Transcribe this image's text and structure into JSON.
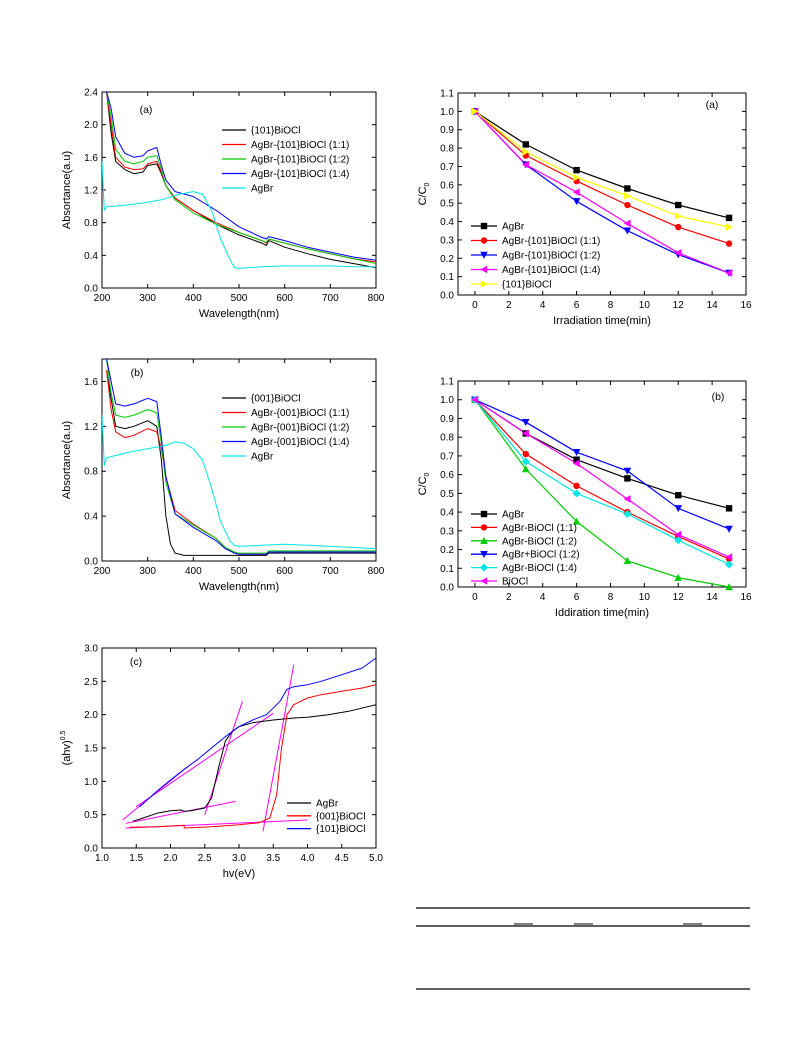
{
  "chart_data": [
    {
      "id": "abs_a",
      "type": "line",
      "panel_label": "(a)",
      "xlabel": "Wavelength(nm)",
      "ylabel": "Absortance(a.u)",
      "xlim": [
        200,
        800
      ],
      "ylim": [
        0,
        2.4
      ],
      "xticks": [
        200,
        300,
        400,
        500,
        600,
        700,
        800
      ],
      "yticks": [
        0.0,
        0.4,
        0.8,
        1.2,
        1.6,
        2.0,
        2.4
      ],
      "legend_position": "top-right",
      "series": [
        {
          "name": "{101}BiOCl",
          "color": "#000000",
          "x": [
            210,
            220,
            230,
            250,
            270,
            290,
            300,
            320,
            330,
            340,
            360,
            400,
            450,
            500,
            550,
            560,
            565,
            600,
            650,
            700,
            750,
            800
          ],
          "y": [
            2.4,
            1.9,
            1.55,
            1.45,
            1.4,
            1.42,
            1.5,
            1.52,
            1.4,
            1.25,
            1.1,
            0.95,
            0.78,
            0.65,
            0.55,
            0.52,
            0.58,
            0.5,
            0.42,
            0.35,
            0.3,
            0.25
          ]
        },
        {
          "name": "AgBr-{101}BiOCl (1:1)",
          "color": "#ff0000",
          "x": [
            210,
            220,
            230,
            250,
            270,
            290,
            300,
            320,
            330,
            340,
            360,
            400,
            450,
            500,
            550,
            560,
            565,
            600,
            650,
            700,
            750,
            800
          ],
          "y": [
            2.4,
            2.0,
            1.6,
            1.48,
            1.45,
            1.46,
            1.52,
            1.55,
            1.42,
            1.25,
            1.1,
            0.95,
            0.8,
            0.68,
            0.58,
            0.55,
            0.6,
            0.55,
            0.48,
            0.42,
            0.36,
            0.32
          ]
        },
        {
          "name": "AgBr-{101}BiOCl (1:2)",
          "color": "#00cc00",
          "x": [
            210,
            220,
            230,
            250,
            270,
            290,
            300,
            320,
            330,
            340,
            360,
            400,
            450,
            500,
            550,
            560,
            565,
            600,
            650,
            700,
            750,
            800
          ],
          "y": [
            2.4,
            2.1,
            1.7,
            1.55,
            1.52,
            1.55,
            1.6,
            1.62,
            1.45,
            1.25,
            1.08,
            0.92,
            0.78,
            0.68,
            0.58,
            0.56,
            0.6,
            0.55,
            0.48,
            0.42,
            0.36,
            0.3
          ]
        },
        {
          "name": "AgBr-{101}BiOCl (1:4)",
          "color": "#0000ff",
          "x": [
            210,
            220,
            230,
            250,
            270,
            290,
            300,
            320,
            330,
            340,
            360,
            400,
            450,
            500,
            550,
            560,
            565,
            600,
            650,
            700,
            750,
            800
          ],
          "y": [
            2.4,
            2.2,
            1.85,
            1.65,
            1.6,
            1.62,
            1.68,
            1.72,
            1.5,
            1.32,
            1.18,
            1.12,
            0.95,
            0.75,
            0.62,
            0.6,
            0.63,
            0.58,
            0.5,
            0.44,
            0.38,
            0.34
          ]
        },
        {
          "name": "AgBr",
          "color": "#00e5e5",
          "x": [
            200,
            205,
            210,
            230,
            260,
            300,
            330,
            370,
            400,
            420,
            440,
            460,
            480,
            490,
            500,
            550,
            600,
            650,
            700,
            750,
            800
          ],
          "y": [
            1.55,
            0.95,
            1.0,
            1.0,
            1.02,
            1.05,
            1.08,
            1.15,
            1.18,
            1.15,
            0.95,
            0.6,
            0.35,
            0.25,
            0.24,
            0.26,
            0.27,
            0.27,
            0.27,
            0.26,
            0.26
          ]
        }
      ]
    },
    {
      "id": "abs_b",
      "type": "line",
      "panel_label": "(b)",
      "xlabel": "Wavelength(nm)",
      "ylabel": "Absortance(a.u)",
      "xlim": [
        200,
        800
      ],
      "ylim": [
        0,
        1.8
      ],
      "xticks": [
        200,
        300,
        400,
        500,
        600,
        700,
        800
      ],
      "yticks": [
        0.0,
        0.4,
        0.8,
        1.2,
        1.6
      ],
      "legend_position": "top-right",
      "series": [
        {
          "name": "{001}BiOCl",
          "color": "#000000",
          "x": [
            210,
            220,
            230,
            250,
            270,
            300,
            320,
            330,
            340,
            350,
            360,
            380,
            400,
            450,
            500,
            550,
            560,
            565,
            600,
            700,
            800
          ],
          "y": [
            1.7,
            1.45,
            1.2,
            1.18,
            1.2,
            1.25,
            1.2,
            0.9,
            0.4,
            0.15,
            0.07,
            0.05,
            0.05,
            0.05,
            0.05,
            0.05,
            0.05,
            0.07,
            0.07,
            0.07,
            0.07
          ]
        },
        {
          "name": "AgBr-{001}BiOCl (1:1)",
          "color": "#ff0000",
          "x": [
            210,
            220,
            230,
            250,
            270,
            300,
            320,
            330,
            340,
            360,
            400,
            450,
            470,
            490,
            500,
            550,
            560,
            565,
            600,
            700,
            800
          ],
          "y": [
            1.7,
            1.35,
            1.15,
            1.1,
            1.12,
            1.18,
            1.15,
            1.0,
            0.75,
            0.45,
            0.33,
            0.2,
            0.12,
            0.07,
            0.06,
            0.06,
            0.06,
            0.08,
            0.08,
            0.08,
            0.08
          ]
        },
        {
          "name": "AgBr-{001}BiOCl (1:2)",
          "color": "#00cc00",
          "x": [
            210,
            220,
            230,
            250,
            270,
            300,
            320,
            330,
            340,
            360,
            400,
            450,
            470,
            490,
            500,
            550,
            560,
            565,
            600,
            700,
            800
          ],
          "y": [
            1.8,
            1.5,
            1.3,
            1.28,
            1.3,
            1.35,
            1.32,
            1.05,
            0.7,
            0.42,
            0.32,
            0.2,
            0.12,
            0.08,
            0.07,
            0.07,
            0.07,
            0.09,
            0.09,
            0.09,
            0.09
          ]
        },
        {
          "name": "AgBr-{001}BiOCl (1:4)",
          "color": "#0000ff",
          "x": [
            210,
            220,
            230,
            250,
            270,
            300,
            320,
            330,
            340,
            360,
            400,
            450,
            470,
            490,
            500,
            550,
            560,
            565,
            600,
            700,
            800
          ],
          "y": [
            1.8,
            1.6,
            1.4,
            1.38,
            1.4,
            1.45,
            1.42,
            1.1,
            0.75,
            0.42,
            0.3,
            0.18,
            0.11,
            0.07,
            0.06,
            0.06,
            0.06,
            0.08,
            0.08,
            0.08,
            0.08
          ]
        },
        {
          "name": "AgBr",
          "color": "#00e5e5",
          "x": [
            200,
            205,
            210,
            230,
            260,
            300,
            340,
            360,
            380,
            400,
            420,
            440,
            460,
            480,
            490,
            500,
            550,
            600,
            650,
            700,
            750,
            800
          ],
          "y": [
            1.3,
            0.85,
            0.92,
            0.94,
            0.97,
            1.0,
            1.03,
            1.06,
            1.05,
            1.0,
            0.9,
            0.65,
            0.35,
            0.18,
            0.14,
            0.13,
            0.14,
            0.15,
            0.14,
            0.13,
            0.12,
            0.11
          ]
        }
      ]
    },
    {
      "id": "tauc_c",
      "type": "line",
      "panel_label": "(c)",
      "xlabel": "hv(eV)",
      "ylabel": "(ahv)",
      "ylabel_sup": "0.5",
      "xlim": [
        1.0,
        5.0
      ],
      "ylim": [
        0.0,
        3.0
      ],
      "xticks": [
        1.0,
        1.5,
        2.0,
        2.5,
        3.0,
        3.5,
        4.0,
        4.5,
        5.0
      ],
      "yticks": [
        0.0,
        0.5,
        1.0,
        1.5,
        2.0,
        2.5,
        3.0
      ],
      "legend_position": "bottom-right",
      "series": [
        {
          "name": "AgBr",
          "color": "#000000",
          "x": [
            1.45,
            1.6,
            1.8,
            2.0,
            2.15,
            2.2,
            2.3,
            2.5,
            2.6,
            2.7,
            2.8,
            2.9,
            3.0,
            3.2,
            3.5,
            3.8,
            4.0,
            4.3,
            4.6,
            5.0
          ],
          "y": [
            0.4,
            0.45,
            0.52,
            0.56,
            0.57,
            0.55,
            0.56,
            0.6,
            0.75,
            1.2,
            1.6,
            1.75,
            1.82,
            1.88,
            1.92,
            1.95,
            1.96,
            2.0,
            2.05,
            2.15
          ]
        },
        {
          "name": "{001}BiOCl",
          "color": "#ff0000",
          "x": [
            1.4,
            1.8,
            2.2,
            2.2,
            2.6,
            3.0,
            3.3,
            3.45,
            3.55,
            3.62,
            3.7,
            3.8,
            3.9,
            4.0,
            4.2,
            4.5,
            4.8,
            5.0
          ],
          "y": [
            0.31,
            0.32,
            0.34,
            0.3,
            0.32,
            0.35,
            0.38,
            0.45,
            0.8,
            1.5,
            2.0,
            2.15,
            2.2,
            2.25,
            2.3,
            2.35,
            2.4,
            2.45
          ]
        },
        {
          "name": "{101}BiOCl",
          "color": "#0000ff",
          "x": [
            1.55,
            1.8,
            2.0,
            2.2,
            2.4,
            2.6,
            2.8,
            3.0,
            3.2,
            3.4,
            3.6,
            3.7,
            3.8,
            4.0,
            4.2,
            4.5,
            4.8,
            5.0
          ],
          "y": [
            0.62,
            0.85,
            1.02,
            1.18,
            1.33,
            1.5,
            1.67,
            1.82,
            1.92,
            2.0,
            2.2,
            2.38,
            2.42,
            2.45,
            2.5,
            2.6,
            2.7,
            2.85
          ]
        }
      ],
      "tangent_lines": [
        {
          "color": "#ff00ff",
          "x": [
            1.3,
            2.25
          ],
          "y": [
            0.42,
            1.22
          ]
        },
        {
          "color": "#ff00ff",
          "x": [
            1.35,
            2.95
          ],
          "y": [
            0.37,
            0.7
          ]
        },
        {
          "color": "#ff00ff",
          "x": [
            2.5,
            3.05
          ],
          "y": [
            0.5,
            2.2
          ]
        },
        {
          "color": "#ff00ff",
          "x": [
            1.35,
            4.0
          ],
          "y": [
            0.3,
            0.42
          ]
        },
        {
          "color": "#ff00ff",
          "x": [
            3.35,
            3.8
          ],
          "y": [
            0.25,
            2.75
          ]
        },
        {
          "color": "#ff00ff",
          "x": [
            1.5,
            3.5
          ],
          "y": [
            0.62,
            2.02
          ]
        }
      ]
    },
    {
      "id": "deg_a",
      "type": "line",
      "panel_label": "(a)",
      "xlabel": "Irradiation time(min)",
      "ylabel": "C/C",
      "ylabel_sub": "0",
      "xlim": [
        -1,
        16
      ],
      "ylim": [
        0.0,
        1.1
      ],
      "xticks": [
        0,
        2,
        4,
        6,
        8,
        10,
        12,
        14,
        16
      ],
      "yticks": [
        0.0,
        0.1,
        0.2,
        0.3,
        0.4,
        0.5,
        0.6,
        0.7,
        0.8,
        0.9,
        1.0,
        1.1
      ],
      "legend_position": "bottom-left",
      "series": [
        {
          "name": "AgBr",
          "color": "#000000",
          "marker": "square",
          "x": [
            0,
            3,
            6,
            9,
            12,
            15
          ],
          "y": [
            1.0,
            0.82,
            0.68,
            0.58,
            0.49,
            0.42
          ]
        },
        {
          "name": "AgBr-{101}BiOCl (1:1)",
          "color": "#ff0000",
          "marker": "circle",
          "x": [
            0,
            3,
            6,
            9,
            12,
            15
          ],
          "y": [
            1.0,
            0.76,
            0.62,
            0.49,
            0.37,
            0.28
          ]
        },
        {
          "name": "AgBr-{101}BiOCl (1:2)",
          "color": "#0000ff",
          "marker": "triangle-down",
          "x": [
            0,
            3,
            6,
            9,
            12,
            15
          ],
          "y": [
            1.0,
            0.71,
            0.51,
            0.35,
            0.22,
            0.12
          ]
        },
        {
          "name": "AgBr-{101}BiOCl (1:4)",
          "color": "#ff00ff",
          "marker": "triangle-left",
          "x": [
            0,
            3,
            6,
            9,
            12,
            15
          ],
          "y": [
            1.0,
            0.71,
            0.56,
            0.39,
            0.23,
            0.12
          ]
        },
        {
          "name": "{101}BiOCl",
          "color": "#ffff00",
          "marker": "triangle-right",
          "x": [
            0,
            3,
            6,
            9,
            12,
            15
          ],
          "y": [
            1.0,
            0.78,
            0.64,
            0.54,
            0.43,
            0.37
          ]
        }
      ]
    },
    {
      "id": "deg_b",
      "type": "line",
      "panel_label": "(b)",
      "xlabel": "Iddiration time(min)",
      "ylabel": "C/C",
      "ylabel_sub": "0",
      "xlim": [
        -1,
        16
      ],
      "ylim": [
        0.0,
        1.1
      ],
      "xticks": [
        0,
        2,
        4,
        6,
        8,
        10,
        12,
        14,
        16
      ],
      "yticks": [
        0.0,
        0.1,
        0.2,
        0.3,
        0.4,
        0.5,
        0.6,
        0.7,
        0.8,
        0.9,
        1.0,
        1.1
      ],
      "legend_position": "bottom-left",
      "series": [
        {
          "name": "AgBr",
          "color": "#000000",
          "marker": "square",
          "x": [
            0,
            3,
            6,
            9,
            12,
            15
          ],
          "y": [
            1.0,
            0.82,
            0.68,
            0.58,
            0.49,
            0.42
          ]
        },
        {
          "name": "AgBr-BiOCl (1:1)",
          "color": "#ff0000",
          "marker": "circle",
          "x": [
            0,
            3,
            6,
            9,
            12,
            15
          ],
          "y": [
            1.0,
            0.71,
            0.54,
            0.4,
            0.27,
            0.15
          ]
        },
        {
          "name": "AgBr-BiOCl (1:2)",
          "color": "#00cc00",
          "marker": "triangle-up",
          "x": [
            0,
            3,
            6,
            9,
            12,
            15
          ],
          "y": [
            1.0,
            0.63,
            0.35,
            0.14,
            0.05,
            0.0
          ]
        },
        {
          "name": "AgBr+BiOCl (1:2)",
          "color": "#0000ff",
          "marker": "triangle-down",
          "x": [
            0,
            3,
            6,
            9,
            12,
            15
          ],
          "y": [
            1.0,
            0.88,
            0.72,
            0.62,
            0.42,
            0.31
          ]
        },
        {
          "name": "AgBr-BiOCl (1:4)",
          "color": "#00e5e5",
          "marker": "diamond",
          "x": [
            0,
            3,
            6,
            9,
            12,
            15
          ],
          "y": [
            1.0,
            0.67,
            0.5,
            0.39,
            0.25,
            0.12
          ]
        },
        {
          "name": "BiOCl",
          "color": "#ff00ff",
          "marker": "triangle-left",
          "x": [
            0,
            3,
            6,
            9,
            12,
            15
          ],
          "y": [
            1.0,
            0.82,
            0.66,
            0.47,
            0.28,
            0.16
          ]
        }
      ]
    }
  ]
}
